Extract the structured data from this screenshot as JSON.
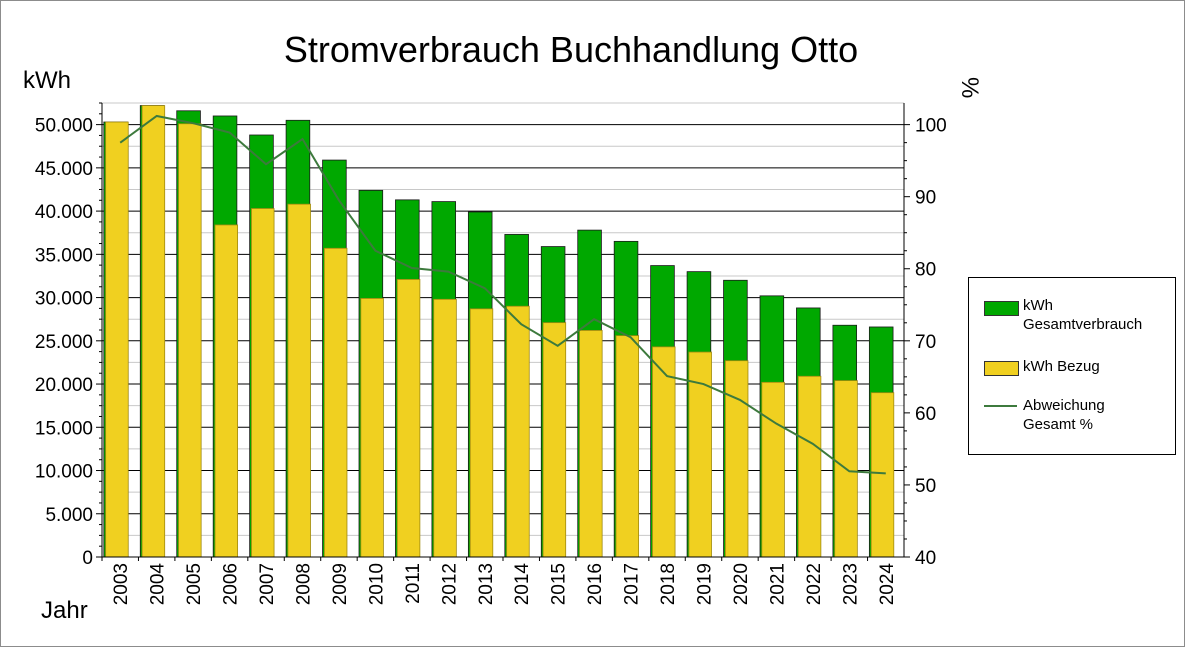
{
  "chart_data": {
    "type": "bar",
    "title": "Stromverbrauch Buchhandlung Otto",
    "xlabel": "Jahr",
    "ylabel": "kWh",
    "y2label": "%",
    "categories": [
      "2003",
      "2004",
      "2005",
      "2006",
      "2007",
      "2008",
      "2009",
      "2010",
      "2011",
      "2012",
      "2013",
      "2014",
      "2015",
      "2016",
      "2017",
      "2018",
      "2019",
      "2020",
      "2021",
      "2022",
      "2023",
      "2024"
    ],
    "ylim": [
      0,
      52500
    ],
    "yticks": [
      0,
      5000,
      10000,
      15000,
      20000,
      25000,
      30000,
      35000,
      40000,
      45000,
      50000
    ],
    "ytick_labels": [
      "0",
      "5.000",
      "10.000",
      "15.000",
      "20.000",
      "25.000",
      "30.000",
      "35.000",
      "40.000",
      "45.000",
      "50.000"
    ],
    "y2lim": [
      40,
      103
    ],
    "y2ticks": [
      40,
      50,
      60,
      70,
      80,
      90,
      100
    ],
    "y2tick_labels": [
      "40",
      "50",
      "60",
      "70",
      "80",
      "90",
      "100"
    ],
    "grid": true,
    "legend_position": "right",
    "series": [
      {
        "name": "kWh Gesamtverbrauch",
        "type": "bar",
        "axis": "left",
        "color": "#00a800",
        "values": [
          50300,
          52200,
          51600,
          51000,
          48800,
          50500,
          45900,
          42400,
          41300,
          41100,
          39900,
          37300,
          35900,
          37800,
          36500,
          33700,
          33000,
          32000,
          30200,
          28800,
          26800,
          26600
        ]
      },
      {
        "name": "kWh Bezug",
        "type": "bar",
        "axis": "left",
        "color": "#f0d020",
        "values": [
          50300,
          52200,
          50100,
          38400,
          40300,
          40800,
          35700,
          29900,
          32100,
          29800,
          28700,
          29000,
          27100,
          26200,
          25600,
          24300,
          23700,
          22700,
          20200,
          20900,
          20400,
          19000
        ]
      },
      {
        "name": "Abweichung Gesamt %",
        "type": "line",
        "axis": "right",
        "color": "#3d7a3d",
        "values": [
          97.5,
          101.2,
          100.2,
          98.9,
          94.5,
          98.0,
          89.5,
          82.5,
          80.1,
          79.6,
          77.3,
          72.3,
          69.3,
          73.0,
          70.5,
          65.1,
          64.0,
          61.8,
          58.5,
          55.7,
          51.9,
          51.6
        ]
      }
    ]
  }
}
